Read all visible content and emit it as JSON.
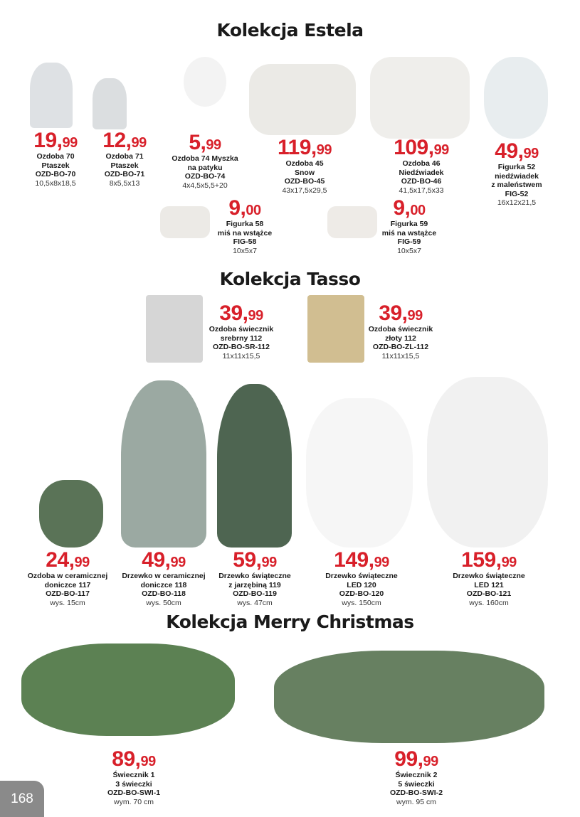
{
  "headings": [
    "Kolekcja Estela",
    "Kolekcja Tasso",
    "Kolekcja Merry Christmas"
  ],
  "page_number": "168",
  "colors": {
    "price": "#d8202a",
    "text": "#1a1a1a"
  },
  "products": [
    {
      "int": "19,",
      "dec": "99",
      "lines": [
        "Ozdoba 70",
        "Ptaszek",
        "OZD-BO-70"
      ],
      "size": "10,5x8x18,5"
    },
    {
      "int": "12,",
      "dec": "99",
      "lines": [
        "Ozdoba 71",
        "Ptaszek",
        "OZD-BO-71"
      ],
      "size": "8x5,5x13"
    },
    {
      "int": "5,",
      "dec": "99",
      "lines": [
        "Ozdoba 74 Myszka",
        "na patyku",
        "OZD-BO-74"
      ],
      "size": "4x4,5x5,5+20"
    },
    {
      "int": "119,",
      "dec": "99",
      "lines": [
        "Ozdoba 45",
        "Snow",
        "OZD-BO-45"
      ],
      "size": "43x17,5x29,5"
    },
    {
      "int": "109,",
      "dec": "99",
      "lines": [
        "Ozdoba 46",
        "Niedźwiadek",
        "OZD-BO-46"
      ],
      "size": "41,5x17,5x33"
    },
    {
      "int": "49,",
      "dec": "99",
      "lines": [
        "Figurka 52",
        "niedźwiadek",
        "z maleństwem",
        "FIG-52"
      ],
      "size": "16x12x21,5"
    },
    {
      "int": "9,",
      "dec": "00",
      "lines": [
        "Figurka 58",
        "miś na wstążce",
        "FIG-58"
      ],
      "size": "10x5x7"
    },
    {
      "int": "9,",
      "dec": "00",
      "lines": [
        "Figurka 59",
        "miś na wstążce",
        "FIG-59"
      ],
      "size": "10x5x7"
    },
    {
      "int": "39,",
      "dec": "99",
      "lines": [
        "Ozdoba świecznik",
        "srebrny 112",
        "OZD-BO-SR-112"
      ],
      "size": "11x11x15,5"
    },
    {
      "int": "39,",
      "dec": "99",
      "lines": [
        "Ozdoba świecznik",
        "złoty 112",
        "OZD-BO-ZL-112"
      ],
      "size": "11x11x15,5"
    },
    {
      "int": "24,",
      "dec": "99",
      "lines": [
        "Ozdoba w ceramicznej",
        "doniczce 117",
        "OZD-BO-117"
      ],
      "size": "wys. 15cm"
    },
    {
      "int": "49,",
      "dec": "99",
      "lines": [
        "Drzewko w ceramicznej",
        "doniczce 118",
        "OZD-BO-118"
      ],
      "size": "wys. 50cm"
    },
    {
      "int": "59,",
      "dec": "99",
      "lines": [
        "Drzewko świąteczne",
        "z jarzębiną 119",
        "OZD-BO-119"
      ],
      "size": "wys. 47cm"
    },
    {
      "int": "149,",
      "dec": "99",
      "lines": [
        "Drzewko świąteczne",
        "LED 120",
        "OZD-BO-120"
      ],
      "size": "wys. 150cm"
    },
    {
      "int": "159,",
      "dec": "99",
      "lines": [
        "Drzewko świąteczne",
        "LED 121",
        "OZD-BO-121"
      ],
      "size": "wys. 160cm"
    },
    {
      "int": "89,",
      "dec": "99",
      "lines": [
        "Świecznik 1",
        "3 świeczki",
        "OZD-BO-SWI-1"
      ],
      "size": "wym. 70 cm"
    },
    {
      "int": "99,",
      "dec": "99",
      "lines": [
        "Świecznik 2",
        "5 świeczki",
        "OZD-BO-SWI-2"
      ],
      "size": "wym. 95 cm"
    }
  ]
}
